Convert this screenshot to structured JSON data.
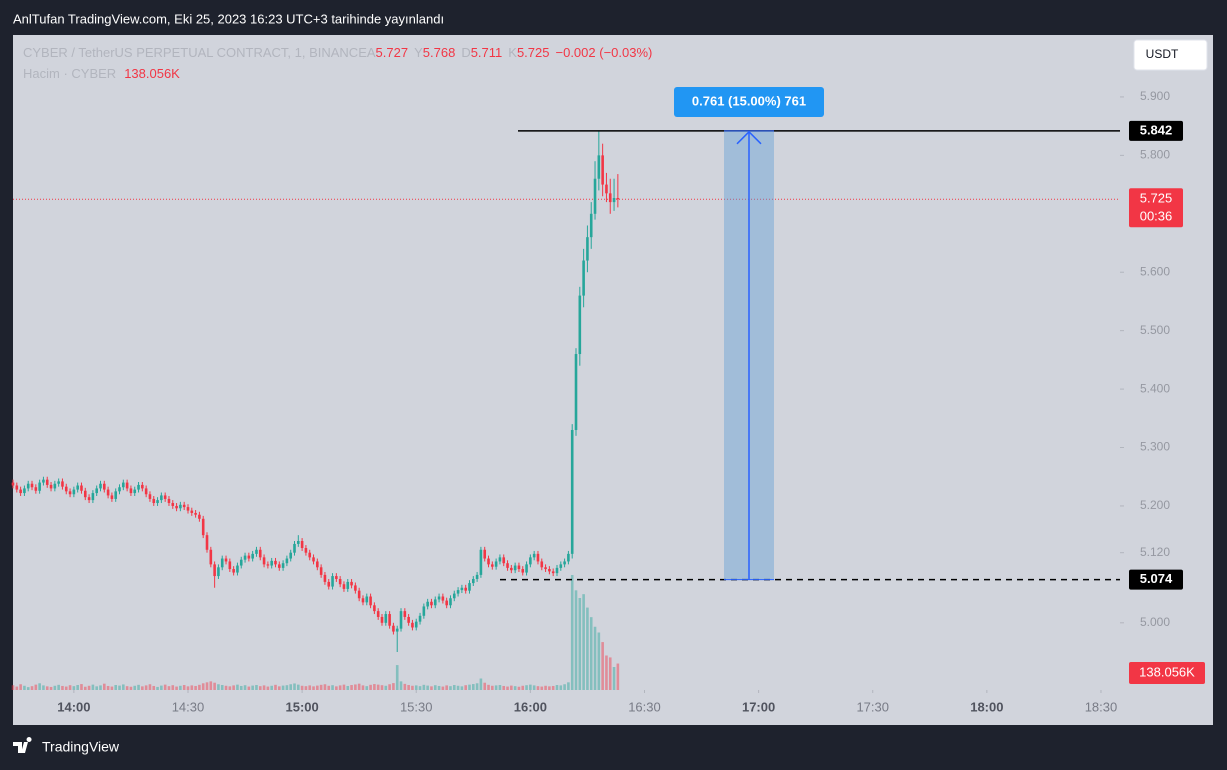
{
  "header": {
    "title": "AnlTufan TradingView.com, Eki 25, 2023 16:23 UTC+3 tarihinde yayınlandı"
  },
  "footer": {
    "brand": "TradingView"
  },
  "chart_data": {
    "type": "candlestick",
    "title": "CYBER / TetherUS PERPETUAL CONTRACT, 1, BINANCE",
    "legend_labels": {
      "open": "A",
      "high": "Y",
      "low": "D",
      "close": "K",
      "change": "−0.002 (−0.03%)",
      "volume_title": "Hacim · CYBER",
      "last_volume_label": "138.056K"
    },
    "currency": "USDT",
    "countdown": "00:36",
    "up_color": "#26a69a",
    "down_color": "#f23645",
    "annotations": {
      "high_line": 5.842,
      "low_line": 5.074,
      "measure_label": "0.761 (15.00%) 761"
    },
    "xlim": [
      "13:44",
      "18:35"
    ],
    "xticks": [
      "14:00",
      "14:30",
      "15:00",
      "15:30",
      "16:00",
      "16:30",
      "17:00",
      "17:30",
      "18:00",
      "18:30"
    ],
    "ylim": [
      4.885,
      6.006
    ],
    "yticks": [
      {
        "value": 5.9,
        "label": "5.900"
      },
      {
        "value": 5.8,
        "label": "5.800"
      },
      {
        "value": 5.6,
        "label": "5.600"
      },
      {
        "value": 5.5,
        "label": "5.500"
      },
      {
        "value": 5.4,
        "label": "5.400"
      },
      {
        "value": 5.3,
        "label": "5.300"
      },
      {
        "value": 5.2,
        "label": "5.200"
      },
      {
        "value": 5.12,
        "label": "5.120"
      },
      {
        "value": 5.0,
        "label": "5.000"
      }
    ],
    "x": [
      "13:44",
      "13:45",
      "13:46",
      "13:47",
      "13:48",
      "13:49",
      "13:50",
      "13:51",
      "13:52",
      "13:53",
      "13:54",
      "13:55",
      "13:56",
      "13:57",
      "13:58",
      "13:59",
      "14:00",
      "14:01",
      "14:02",
      "14:03",
      "14:04",
      "14:05",
      "14:06",
      "14:07",
      "14:08",
      "14:09",
      "14:10",
      "14:11",
      "14:12",
      "14:13",
      "14:14",
      "14:15",
      "14:16",
      "14:17",
      "14:18",
      "14:19",
      "14:20",
      "14:21",
      "14:22",
      "14:23",
      "14:24",
      "14:25",
      "14:26",
      "14:27",
      "14:28",
      "14:29",
      "14:30",
      "14:31",
      "14:32",
      "14:33",
      "14:34",
      "14:35",
      "14:36",
      "14:37",
      "14:38",
      "14:39",
      "14:40",
      "14:41",
      "14:42",
      "14:43",
      "14:44",
      "14:45",
      "14:46",
      "14:47",
      "14:48",
      "14:49",
      "14:50",
      "14:51",
      "14:52",
      "14:53",
      "14:54",
      "14:55",
      "14:56",
      "14:57",
      "14:58",
      "14:59",
      "15:00",
      "15:01",
      "15:02",
      "15:03",
      "15:04",
      "15:05",
      "15:06",
      "15:07",
      "15:08",
      "15:09",
      "15:10",
      "15:11",
      "15:12",
      "15:13",
      "15:14",
      "15:15",
      "15:16",
      "15:17",
      "15:18",
      "15:19",
      "15:20",
      "15:21",
      "15:22",
      "15:23",
      "15:24",
      "15:25",
      "15:26",
      "15:27",
      "15:28",
      "15:29",
      "15:30",
      "15:31",
      "15:32",
      "15:33",
      "15:34",
      "15:35",
      "15:36",
      "15:37",
      "15:38",
      "15:39",
      "15:40",
      "15:41",
      "15:42",
      "15:43",
      "15:44",
      "15:45",
      "15:46",
      "15:47",
      "15:48",
      "15:49",
      "15:50",
      "15:51",
      "15:52",
      "15:53",
      "15:54",
      "15:55",
      "15:56",
      "15:57",
      "15:58",
      "15:59",
      "16:00",
      "16:01",
      "16:02",
      "16:03",
      "16:04",
      "16:05",
      "16:06",
      "16:07",
      "16:08",
      "16:09",
      "16:10",
      "16:11",
      "16:12",
      "16:13",
      "16:14",
      "16:15",
      "16:16",
      "16:17",
      "16:18",
      "16:19",
      "16:20",
      "16:21",
      "16:22",
      "16:23"
    ],
    "open": [
      5.24,
      5.235,
      5.228,
      5.222,
      5.23,
      5.238,
      5.232,
      5.226,
      5.24,
      5.245,
      5.236,
      5.23,
      5.238,
      5.242,
      5.233,
      5.225,
      5.22,
      5.228,
      5.235,
      5.226,
      5.215,
      5.21,
      5.222,
      5.23,
      5.238,
      5.228,
      5.218,
      5.212,
      5.225,
      5.232,
      5.24,
      5.23,
      5.222,
      5.228,
      5.236,
      5.23,
      5.22,
      5.212,
      5.205,
      5.21,
      5.218,
      5.212,
      5.205,
      5.2,
      5.196,
      5.202,
      5.198,
      5.192,
      5.188,
      5.185,
      5.178,
      5.15,
      5.125,
      5.1,
      5.08,
      5.095,
      5.11,
      5.105,
      5.092,
      5.086,
      5.098,
      5.108,
      5.115,
      5.11,
      5.118,
      5.125,
      5.112,
      5.1,
      5.098,
      5.106,
      5.1,
      5.094,
      5.102,
      5.11,
      5.12,
      5.135,
      5.14,
      5.128,
      5.12,
      5.112,
      5.105,
      5.095,
      5.082,
      5.07,
      5.062,
      5.08,
      5.075,
      5.066,
      5.058,
      5.07,
      5.064,
      5.055,
      5.042,
      5.035,
      5.045,
      5.03,
      5.02,
      5.01,
      5.0,
      5.015,
      4.995,
      4.985,
      4.99,
      5.02,
      5.01,
      5.0,
      4.992,
      5.002,
      5.012,
      5.028,
      5.036,
      5.03,
      5.04,
      5.045,
      5.038,
      5.03,
      5.042,
      5.05,
      5.056,
      5.06,
      5.055,
      5.068,
      5.075,
      5.082,
      5.125,
      5.11,
      5.1,
      5.096,
      5.105,
      5.112,
      5.102,
      5.094,
      5.09,
      5.098,
      5.092,
      5.086,
      5.1,
      5.112,
      5.118,
      5.105,
      5.095,
      5.092,
      5.088,
      5.085,
      5.094,
      5.1,
      5.105,
      5.118,
      5.33,
      5.46,
      5.56,
      5.62,
      5.66,
      5.7,
      5.76,
      5.8,
      5.75,
      5.735,
      5.72,
      5.727
    ],
    "high": [
      5.245,
      5.24,
      5.233,
      5.235,
      5.243,
      5.243,
      5.237,
      5.245,
      5.25,
      5.25,
      5.241,
      5.243,
      5.247,
      5.247,
      5.238,
      5.23,
      5.233,
      5.24,
      5.24,
      5.231,
      5.22,
      5.227,
      5.235,
      5.243,
      5.243,
      5.233,
      5.223,
      5.23,
      5.237,
      5.245,
      5.245,
      5.235,
      5.233,
      5.241,
      5.241,
      5.235,
      5.225,
      5.217,
      5.215,
      5.223,
      5.223,
      5.217,
      5.21,
      5.205,
      5.207,
      5.207,
      5.203,
      5.197,
      5.193,
      5.19,
      5.183,
      5.155,
      5.13,
      5.105,
      5.1,
      5.115,
      5.115,
      5.11,
      5.097,
      5.103,
      5.113,
      5.12,
      5.12,
      5.123,
      5.13,
      5.13,
      5.117,
      5.105,
      5.111,
      5.111,
      5.105,
      5.107,
      5.115,
      5.125,
      5.14,
      5.15,
      5.145,
      5.133,
      5.125,
      5.117,
      5.11,
      5.1,
      5.087,
      5.075,
      5.085,
      5.085,
      5.08,
      5.071,
      5.075,
      5.075,
      5.069,
      5.06,
      5.047,
      5.05,
      5.05,
      5.035,
      5.025,
      5.015,
      5.02,
      5.02,
      5.0,
      4.995,
      5.025,
      5.025,
      5.015,
      5.005,
      5.007,
      5.017,
      5.033,
      5.041,
      5.041,
      5.045,
      5.05,
      5.05,
      5.043,
      5.047,
      5.055,
      5.061,
      5.065,
      5.065,
      5.073,
      5.08,
      5.087,
      5.13,
      5.13,
      5.115,
      5.105,
      5.11,
      5.117,
      5.117,
      5.107,
      5.099,
      5.103,
      5.103,
      5.097,
      5.105,
      5.117,
      5.123,
      5.123,
      5.11,
      5.1,
      5.097,
      5.093,
      5.099,
      5.105,
      5.11,
      5.123,
      5.34,
      5.47,
      5.575,
      5.64,
      5.68,
      5.72,
      5.79,
      5.842,
      5.82,
      5.77,
      5.76,
      5.76,
      5.768
    ],
    "low": [
      5.23,
      5.223,
      5.217,
      5.217,
      5.225,
      5.227,
      5.221,
      5.221,
      5.235,
      5.231,
      5.225,
      5.225,
      5.233,
      5.228,
      5.22,
      5.215,
      5.215,
      5.223,
      5.221,
      5.21,
      5.205,
      5.205,
      5.217,
      5.225,
      5.223,
      5.213,
      5.207,
      5.207,
      5.22,
      5.227,
      5.225,
      5.217,
      5.217,
      5.223,
      5.225,
      5.215,
      5.207,
      5.2,
      5.2,
      5.205,
      5.207,
      5.2,
      5.195,
      5.191,
      5.191,
      5.193,
      5.187,
      5.183,
      5.18,
      5.173,
      5.145,
      5.12,
      5.095,
      5.06,
      5.075,
      5.09,
      5.1,
      5.087,
      5.081,
      5.081,
      5.093,
      5.103,
      5.105,
      5.105,
      5.113,
      5.107,
      5.095,
      5.093,
      5.093,
      5.095,
      5.089,
      5.089,
      5.097,
      5.105,
      5.115,
      5.13,
      5.123,
      5.115,
      5.107,
      5.1,
      5.09,
      5.077,
      5.065,
      5.057,
      5.057,
      5.07,
      5.061,
      5.053,
      5.053,
      5.059,
      5.05,
      5.037,
      5.03,
      5.03,
      5.025,
      5.015,
      5.005,
      4.995,
      4.995,
      4.99,
      4.98,
      4.95,
      4.985,
      5.005,
      4.995,
      4.987,
      4.987,
      4.997,
      5.007,
      5.023,
      5.025,
      5.025,
      5.035,
      5.033,
      5.025,
      5.025,
      5.037,
      5.045,
      5.051,
      5.05,
      5.05,
      5.063,
      5.07,
      5.077,
      5.105,
      5.095,
      5.091,
      5.091,
      5.1,
      5.097,
      5.089,
      5.085,
      5.085,
      5.087,
      5.081,
      5.081,
      5.095,
      5.107,
      5.1,
      5.09,
      5.087,
      5.083,
      5.08,
      5.08,
      5.089,
      5.095,
      5.1,
      5.11,
      5.32,
      5.44,
      5.54,
      5.6,
      5.64,
      5.69,
      5.74,
      5.73,
      5.72,
      5.7,
      5.705,
      5.711
    ],
    "close": [
      5.235,
      5.228,
      5.222,
      5.23,
      5.238,
      5.232,
      5.226,
      5.24,
      5.245,
      5.236,
      5.23,
      5.238,
      5.242,
      5.233,
      5.225,
      5.22,
      5.228,
      5.235,
      5.226,
      5.215,
      5.21,
      5.222,
      5.23,
      5.238,
      5.228,
      5.218,
      5.212,
      5.225,
      5.232,
      5.24,
      5.23,
      5.222,
      5.228,
      5.236,
      5.23,
      5.22,
      5.212,
      5.205,
      5.21,
      5.218,
      5.212,
      5.205,
      5.2,
      5.196,
      5.202,
      5.198,
      5.192,
      5.188,
      5.185,
      5.178,
      5.15,
      5.125,
      5.1,
      5.08,
      5.095,
      5.11,
      5.105,
      5.092,
      5.086,
      5.098,
      5.108,
      5.115,
      5.11,
      5.118,
      5.125,
      5.112,
      5.1,
      5.098,
      5.106,
      5.1,
      5.094,
      5.102,
      5.11,
      5.12,
      5.135,
      5.14,
      5.128,
      5.12,
      5.112,
      5.105,
      5.095,
      5.082,
      5.07,
      5.062,
      5.08,
      5.075,
      5.066,
      5.058,
      5.07,
      5.064,
      5.055,
      5.042,
      5.035,
      5.045,
      5.03,
      5.02,
      5.01,
      5.0,
      5.015,
      4.995,
      4.985,
      4.99,
      5.02,
      5.01,
      5.0,
      4.992,
      5.002,
      5.012,
      5.028,
      5.036,
      5.03,
      5.04,
      5.045,
      5.038,
      5.03,
      5.042,
      5.05,
      5.056,
      5.06,
      5.055,
      5.068,
      5.075,
      5.082,
      5.125,
      5.11,
      5.1,
      5.096,
      5.105,
      5.112,
      5.102,
      5.094,
      5.09,
      5.098,
      5.092,
      5.086,
      5.1,
      5.112,
      5.118,
      5.105,
      5.095,
      5.092,
      5.088,
      5.085,
      5.094,
      5.1,
      5.105,
      5.118,
      5.33,
      5.46,
      5.56,
      5.62,
      5.66,
      5.7,
      5.76,
      5.8,
      5.75,
      5.735,
      5.72,
      5.727,
      5.725
    ],
    "volume": [
      25000,
      18000,
      30000,
      22000,
      15000,
      20000,
      28000,
      35000,
      24000,
      19000,
      16000,
      22000,
      27000,
      21000,
      18000,
      25000,
      20000,
      26000,
      31000,
      17000,
      22000,
      28000,
      19000,
      24000,
      33000,
      21000,
      18000,
      26000,
      23000,
      29000,
      20000,
      17000,
      22000,
      27000,
      19000,
      24000,
      30000,
      21000,
      16000,
      23000,
      28000,
      20000,
      25000,
      18000,
      22000,
      26000,
      19000,
      24000,
      21000,
      27000,
      35000,
      40000,
      45000,
      38000,
      30000,
      26000,
      22000,
      19000,
      24000,
      28000,
      21000,
      25000,
      18000,
      23000,
      26000,
      20000,
      24000,
      18000,
      22000,
      27000,
      19000,
      23000,
      25000,
      30000,
      34000,
      28000,
      22000,
      20000,
      24000,
      19000,
      23000,
      27000,
      30000,
      22000,
      25000,
      19000,
      24000,
      28000,
      21000,
      26000,
      29000,
      33000,
      24000,
      20000,
      27000,
      31000,
      28000,
      25000,
      22000,
      30000,
      36000,
      130000,
      45000,
      32000,
      26000,
      22000,
      24000,
      20000,
      27000,
      23000,
      19000,
      25000,
      21000,
      18000,
      24000,
      20000,
      26000,
      22000,
      19000,
      25000,
      28000,
      31000,
      35000,
      60000,
      38000,
      27000,
      22000,
      24000,
      26000,
      21000,
      18000,
      23000,
      20000,
      17000,
      22000,
      25000,
      28000,
      24000,
      20000,
      18000,
      22000,
      19000,
      21000,
      26000,
      24000,
      30000,
      40000,
      600000,
      520000,
      480000,
      500000,
      430000,
      380000,
      330000,
      300000,
      250000,
      180000,
      170000,
      120000,
      138056
    ]
  }
}
